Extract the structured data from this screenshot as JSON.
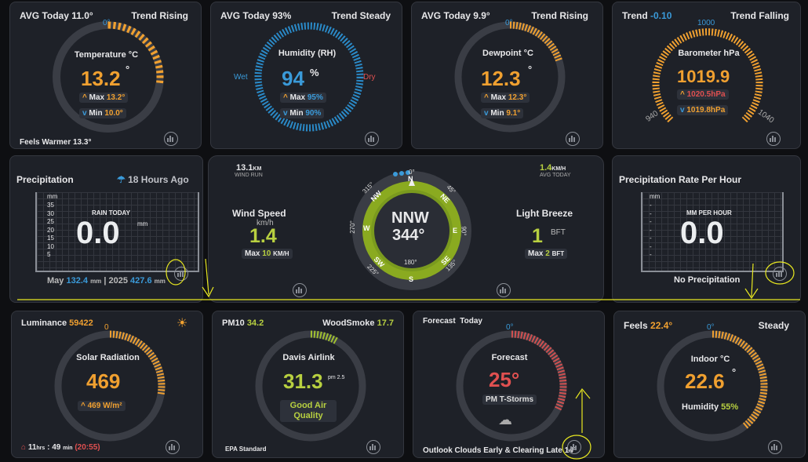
{
  "temperature": {
    "left": "AVG Today 11.0°",
    "right": "Trend Rising",
    "top_tick": "0°",
    "title": "Temperature °C",
    "value": "13.2",
    "unit": "°",
    "max_label": "Max",
    "max_value": "13.2°",
    "min_label": "Min",
    "min_value": "10.0°",
    "footer": "Feels Warmer 13.3°"
  },
  "humidity": {
    "left": "AVG Today 93%",
    "right": "Trend Steady",
    "title": "Humidity (RH)",
    "value": "94",
    "unit": "%",
    "wet": "Wet",
    "dry": "Dry",
    "max_label": "Max",
    "max_value": "95%",
    "min_label": "Min",
    "min_value": "90%"
  },
  "dewpoint": {
    "left": "AVG Today 9.9°",
    "right": "Trend Rising",
    "top_tick": "0°",
    "title": "Dewpoint °C",
    "value": "12.3",
    "unit": "°",
    "max_label": "Max",
    "max_value": "12.3°",
    "min_label": "Min",
    "min_value": "9.1°"
  },
  "barometer": {
    "left": "Trend",
    "left_value": "-0.10",
    "right": "Trend Falling",
    "top_tick": "1000",
    "left_tick": "940",
    "right_tick": "1040",
    "title": "Barometer hPa",
    "value": "1019.9",
    "max_value": "1020.5hPa",
    "min_value": "1019.8hPa"
  },
  "precip": {
    "title": "Precipitation",
    "ago": "18 Hours Ago",
    "axis_unit": "mm",
    "ticks": [
      "35",
      "30",
      "25",
      "20",
      "15",
      "10",
      "5"
    ],
    "caption": "RAIN TODAY",
    "value": "0.0",
    "unit": "mm",
    "footer_month": "May",
    "footer_month_val": "132.4",
    "footer_mm1": "mm",
    "footer_sep": "| 2025",
    "footer_year_val": "427.6",
    "footer_mm2": "mm"
  },
  "wind": {
    "run_value": "13.1",
    "run_unit": "KM",
    "run_label": "WIND RUN",
    "avg_value": "1.4",
    "avg_unit": "KM/H",
    "avg_label": "AVG TODAY",
    "speed_title": "Wind Speed",
    "speed_unit": "km/h",
    "speed_value": "1.4",
    "max_label": "Max",
    "max_value": "10",
    "max_unit": "KM/H",
    "dir": "NNW",
    "deg": "344°",
    "beaufort_title": "Light Breeze",
    "bft_value": "1",
    "bft_unit": "BFT",
    "bmax_label": "Max",
    "bmax_value": "2",
    "bmax_unit": "BFT",
    "compass": {
      "N": "N",
      "NE": "NE",
      "E": "E",
      "SE": "SE",
      "S": "S",
      "SW": "SW",
      "W": "W",
      "NW": "NW",
      "d0": "0°",
      "d45": "45°",
      "d90": "90°",
      "d135": "135°",
      "d180": "180°",
      "d225": "225°",
      "d270": "270°",
      "d315": "315°"
    }
  },
  "rate": {
    "title": "Precipitation Rate Per Hour",
    "axis_unit": "mm",
    "ticks": [
      "-",
      "-",
      "-",
      "-",
      "-",
      "-",
      "-"
    ],
    "caption": "MM PER HOUR",
    "value": "0.0",
    "footer": "No Precipitation"
  },
  "solar": {
    "left": "Luminance",
    "left_value": "59422",
    "top_tick": "0",
    "title": "Solar Radiation",
    "value": "469",
    "max_value": "469 W/m²",
    "daylight_h": "11",
    "hrs": "hrs",
    "daylight_m": ": 49",
    "mins": "min",
    "remaining": "(20:55)"
  },
  "air": {
    "left": "PM10",
    "left_value": "34.2",
    "right": "WoodSmoke",
    "right_value": "17.7",
    "title": "Davis Airlink",
    "value": "31.3",
    "unit": "pm 2.5",
    "quality1": "Good Air",
    "quality2": "Quality",
    "footer": "EPA Standard"
  },
  "forecast": {
    "left": "Forecast",
    "left2": "Today",
    "top_tick": "0°",
    "title": "Forecast",
    "value": "25°",
    "condition": "PM T-Storms",
    "footer": "Outlook Clouds Early & Clearing Late 14°"
  },
  "indoor": {
    "left": "Feels",
    "left_value": "22.4°",
    "right": "Steady",
    "top_tick": "0°",
    "title": "Indoor °C",
    "value": "22.6",
    "unit": "°",
    "humidity_label": "Humidity",
    "humidity_value": "55%"
  },
  "colors": {
    "orange": "#f0a030",
    "blue": "#3a9ad9",
    "green": "#8aaa20",
    "red": "#e05050",
    "annotation": "#e8e820"
  }
}
